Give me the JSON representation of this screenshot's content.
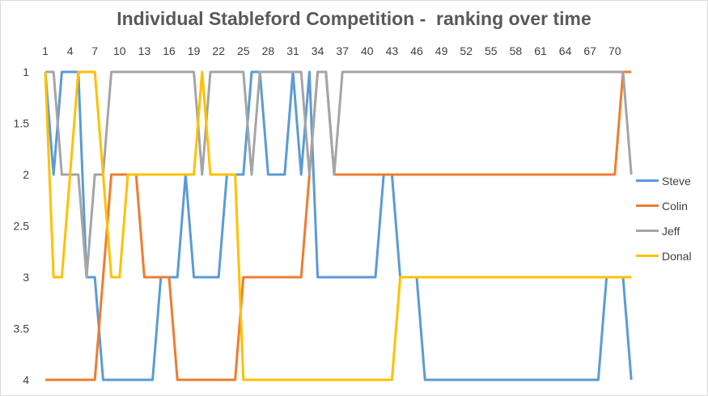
{
  "chart_data": {
    "type": "line",
    "title": "Individual Stableford Competition -  ranking over time",
    "xlabel": "",
    "ylabel": "",
    "x_tick_labels": [
      "1",
      "4",
      "7",
      "10",
      "13",
      "16",
      "19",
      "22",
      "25",
      "28",
      "31",
      "34",
      "37",
      "40",
      "43",
      "46",
      "49",
      "52",
      "55",
      "58",
      "61",
      "64",
      "67",
      "70"
    ],
    "y_tick_labels": [
      "1",
      "1.5",
      "2",
      "2.5",
      "3",
      "3.5",
      "4"
    ],
    "ylim": [
      1,
      4
    ],
    "y_reversed": true,
    "x_axis_position": "top",
    "grid": false,
    "legend_position": "right",
    "x": [
      1,
      2,
      3,
      4,
      5,
      6,
      7,
      8,
      9,
      10,
      11,
      12,
      13,
      14,
      15,
      16,
      17,
      18,
      19,
      20,
      21,
      22,
      23,
      24,
      25,
      26,
      27,
      28,
      29,
      30,
      31,
      32,
      33,
      34,
      35,
      36,
      37,
      38,
      39,
      40,
      41,
      42,
      43,
      44,
      45,
      46,
      47,
      48,
      49,
      50,
      51,
      52,
      53,
      54,
      55,
      56,
      57,
      58,
      59,
      60,
      61,
      62,
      63,
      64,
      65,
      66,
      67,
      68,
      69,
      70,
      71,
      72
    ],
    "series": [
      {
        "name": "Steve",
        "color": "#5b9bd5",
        "values": [
          1,
          2,
          1,
          1,
          1,
          3,
          3,
          4,
          4,
          4,
          4,
          4,
          4,
          4,
          3,
          3,
          3,
          2,
          3,
          3,
          3,
          3,
          2,
          2,
          2,
          1,
          1,
          2,
          2,
          2,
          1,
          2,
          1,
          3,
          3,
          3,
          3,
          3,
          3,
          3,
          3,
          2,
          2,
          3,
          3,
          3,
          4,
          4,
          4,
          4,
          4,
          4,
          4,
          4,
          4,
          4,
          4,
          4,
          4,
          4,
          4,
          4,
          4,
          4,
          4,
          4,
          4,
          4,
          3,
          3,
          3,
          4
        ]
      },
      {
        "name": "Colin",
        "color": "#ed7d31",
        "values": [
          4,
          4,
          4,
          4,
          4,
          4,
          4,
          3,
          2,
          2,
          2,
          2,
          3,
          3,
          3,
          3,
          4,
          4,
          4,
          4,
          4,
          4,
          4,
          4,
          3,
          3,
          3,
          3,
          3,
          3,
          3,
          3,
          2,
          1,
          1,
          2,
          2,
          2,
          2,
          2,
          2,
          2,
          2,
          2,
          2,
          2,
          2,
          2,
          2,
          2,
          2,
          2,
          2,
          2,
          2,
          2,
          2,
          2,
          2,
          2,
          2,
          2,
          2,
          2,
          2,
          2,
          2,
          2,
          2,
          2,
          1,
          1
        ]
      },
      {
        "name": "Jeff",
        "color": "#a5a5a5",
        "values": [
          1,
          1,
          2,
          2,
          2,
          3,
          2,
          2,
          1,
          1,
          1,
          1,
          1,
          1,
          1,
          1,
          1,
          1,
          1,
          2,
          1,
          1,
          1,
          1,
          1,
          2,
          1,
          1,
          1,
          1,
          1,
          1,
          2,
          1,
          1,
          2,
          1,
          1,
          1,
          1,
          1,
          1,
          1,
          1,
          1,
          1,
          1,
          1,
          1,
          1,
          1,
          1,
          1,
          1,
          1,
          1,
          1,
          1,
          1,
          1,
          1,
          1,
          1,
          1,
          1,
          1,
          1,
          1,
          1,
          1,
          1,
          2
        ]
      },
      {
        "name": "Donal",
        "color": "#ffc000",
        "values": [
          1,
          3,
          3,
          2,
          1,
          1,
          1,
          2,
          3,
          3,
          2,
          2,
          2,
          2,
          2,
          2,
          2,
          2,
          2,
          1,
          2,
          2,
          2,
          2,
          4,
          4,
          4,
          4,
          4,
          4,
          4,
          4,
          4,
          4,
          4,
          4,
          4,
          4,
          4,
          4,
          4,
          4,
          4,
          3,
          3,
          3,
          3,
          3,
          3,
          3,
          3,
          3,
          3,
          3,
          3,
          3,
          3,
          3,
          3,
          3,
          3,
          3,
          3,
          3,
          3,
          3,
          3,
          3,
          3,
          3,
          3,
          3
        ]
      }
    ]
  }
}
